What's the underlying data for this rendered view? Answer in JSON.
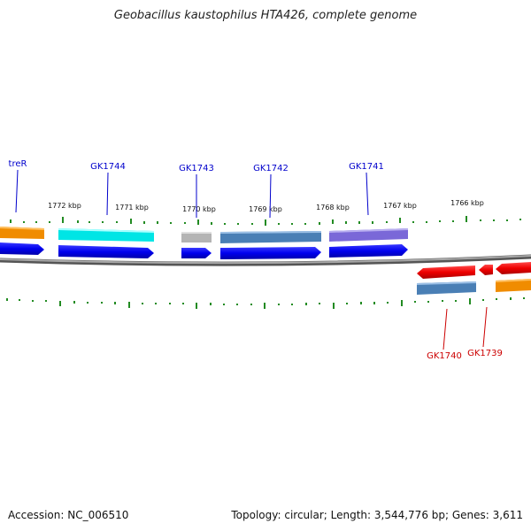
{
  "title": "Geobacillus kaustophilus HTA426, complete genome",
  "footer": {
    "accession": "Accession: NC_006510",
    "summary": "Topology: circular; Length: 3,544,776 bp; Genes: 3,611"
  },
  "scale_labels": [
    "1772 kbp",
    "1771 kbp",
    "1770 kbp",
    "1769 kbp",
    "1768 kbp",
    "1767 kbp",
    "1766 kbp"
  ],
  "gene_labels": [
    "treR",
    "GK1744",
    "GK1743",
    "GK1742",
    "GK1741",
    "GK1740",
    "GK1739"
  ],
  "colors": {
    "forward_label": "#0000cc",
    "reverse_label": "#cc0000",
    "backbone": "#888888",
    "tick": "#228b22",
    "cds": "#0000ee",
    "reverse_cds": "#ee0000"
  }
}
